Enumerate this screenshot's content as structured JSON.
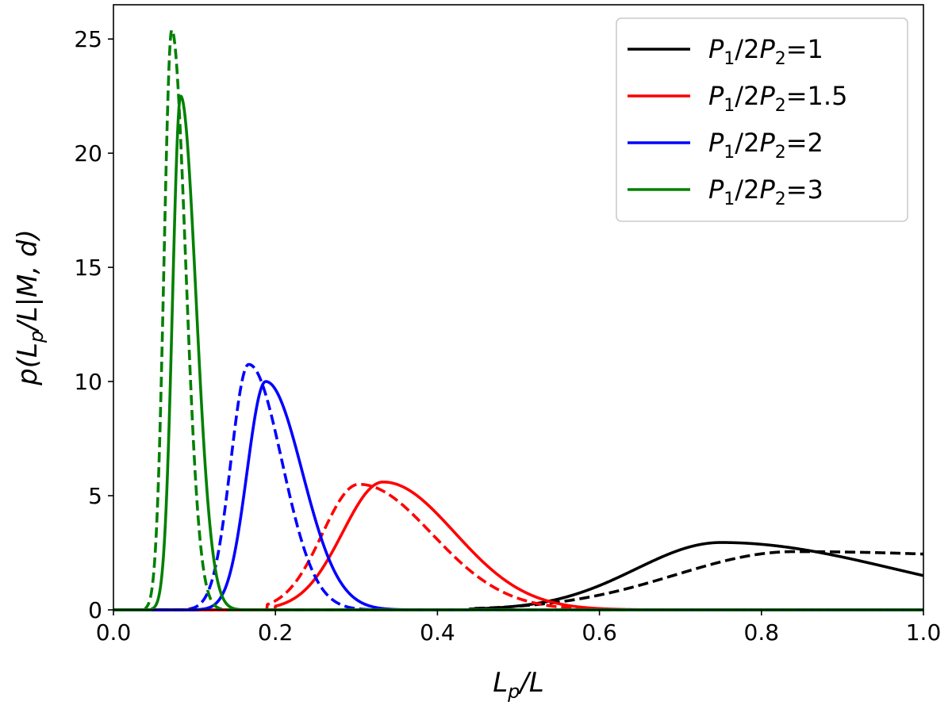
{
  "chart_data": {
    "type": "line",
    "xlabel_main": "L",
    "xlabel_sub": "p",
    "xlabel_tail": "/L",
    "ylabel_pre": "p(L",
    "ylabel_sub": "p",
    "ylabel_tail": "/L|M, d)",
    "xlim": [
      0.0,
      1.0
    ],
    "ylim": [
      0,
      26.5
    ],
    "xticks": [
      "0.0",
      "0.2",
      "0.4",
      "0.6",
      "0.8",
      "1.0"
    ],
    "xtick_values": [
      0.0,
      0.2,
      0.4,
      0.6,
      0.8,
      1.0
    ],
    "yticks": [
      "0",
      "5",
      "10",
      "15",
      "20",
      "25"
    ],
    "ytick_values": [
      0,
      5,
      10,
      15,
      20,
      25
    ],
    "grid": false,
    "legend_placement": "top-right",
    "series": [
      {
        "name": "P1/2P2=1",
        "legend_parts": [
          "P",
          "1",
          "/2P",
          "2",
          "=1"
        ],
        "color": "#000000",
        "solid": {
          "peak": 0.75,
          "amp": 2.95,
          "sl": 0.105,
          "sr": 0.215,
          "start": 0.44
        },
        "dashed": {
          "peak": 0.84,
          "amp": 2.55,
          "sl": 0.145,
          "sr": 0.55,
          "start": 0.44
        }
      },
      {
        "name": "P1/2P2=1.5",
        "legend_parts": [
          "P",
          "1",
          "/2P",
          "2",
          "=1.5"
        ],
        "color": "#ff0000",
        "solid": {
          "peak": 0.333,
          "amp": 5.6,
          "sl": 0.05,
          "sr": 0.088,
          "start": 0.2
        },
        "dashed": {
          "peak": 0.303,
          "amp": 5.5,
          "sl": 0.045,
          "sr": 0.09,
          "start": 0.19
        }
      },
      {
        "name": "P1/2P2=2",
        "legend_parts": [
          "P",
          "1",
          "/2P",
          "2",
          "=2"
        ],
        "color": "#0000ff",
        "solid": {
          "peak": 0.188,
          "amp": 10.0,
          "sl": 0.023,
          "sr": 0.045,
          "start": 0.1
        },
        "dashed": {
          "peak": 0.167,
          "amp": 10.75,
          "sl": 0.022,
          "sr": 0.041,
          "start": 0.09
        }
      },
      {
        "name": "P1/2P2=3",
        "legend_parts": [
          "P",
          "1",
          "/2P",
          "2",
          "=3"
        ],
        "color": "#008000",
        "solid": {
          "peak": 0.083,
          "amp": 22.5,
          "sl": 0.01,
          "sr": 0.019,
          "start": 0.047
        },
        "dashed": {
          "peak": 0.072,
          "amp": 25.4,
          "sl": 0.0095,
          "sr": 0.017,
          "start": 0.04
        }
      }
    ]
  }
}
